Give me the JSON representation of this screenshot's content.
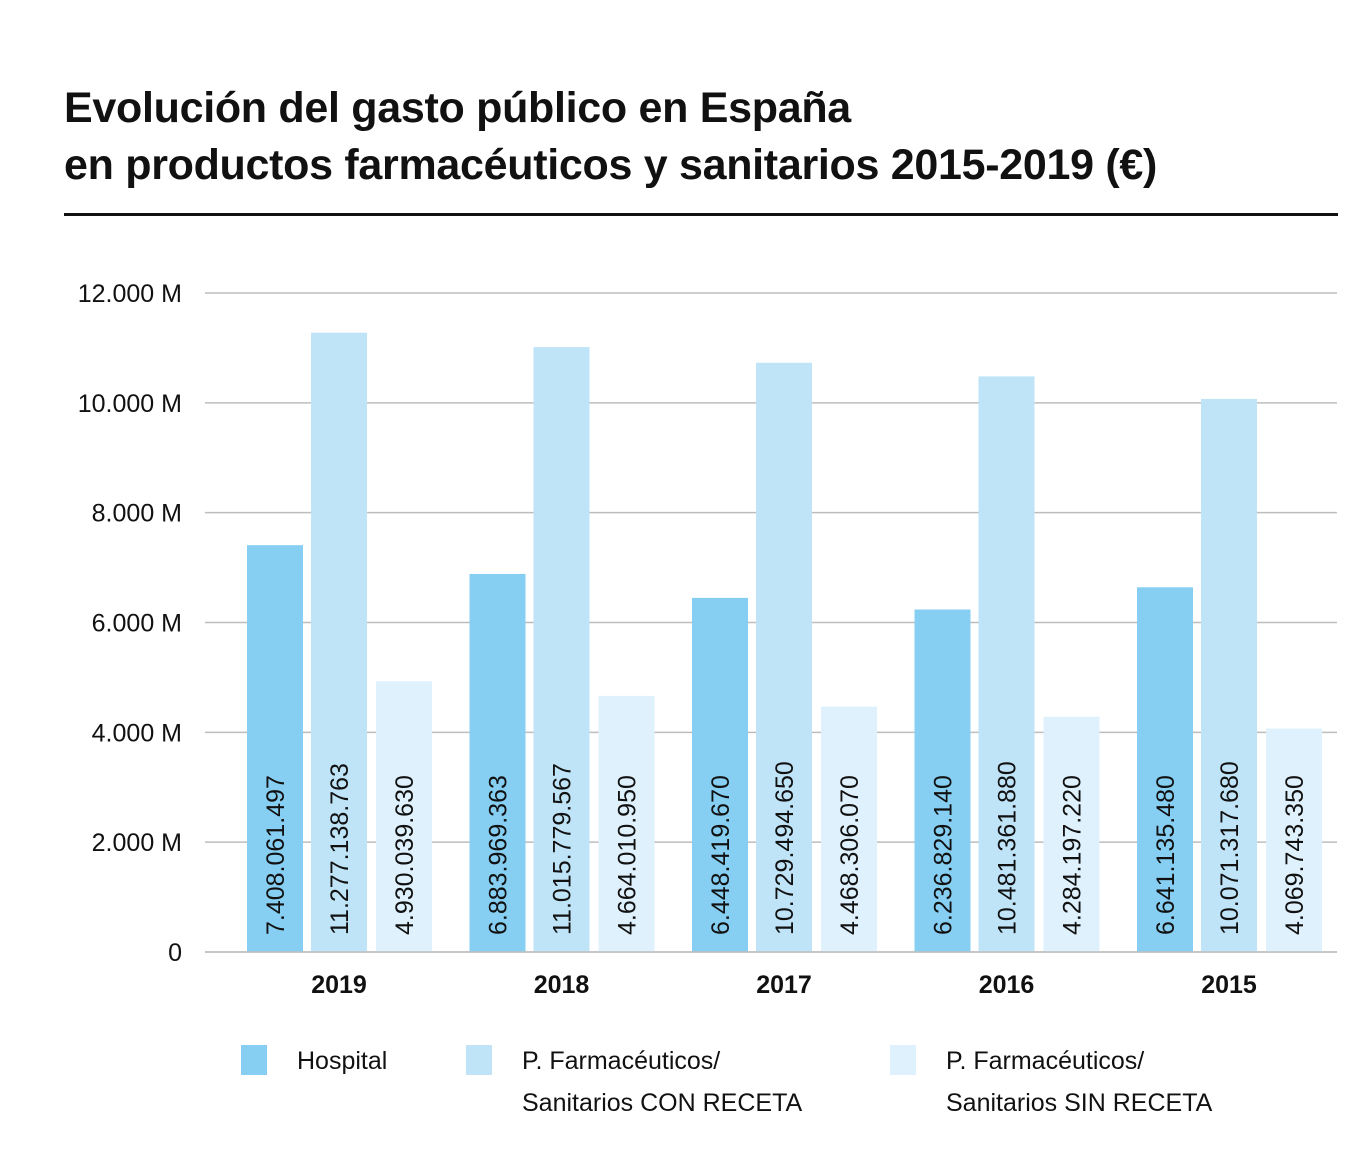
{
  "title_line1": "Evolución del gasto público en España",
  "title_line2": "en productos farmacéuticos y sanitarios 2015-2019 (€)",
  "colors": {
    "hospital": "#86cff3",
    "con_receta": "#bfe4f8",
    "sin_receta": "#dff1fc",
    "grid": "#bdbdbd",
    "text": "#111111"
  },
  "chart_data": {
    "type": "bar",
    "title": "Evolución del gasto público en España en productos farmacéuticos y sanitarios 2015-2019 (€)",
    "xlabel": "",
    "ylabel": "",
    "categories": [
      "2019",
      "2018",
      "2017",
      "2016",
      "2015"
    ],
    "series": [
      {
        "name": "Hospital",
        "values": [
          7408061497,
          6883969363,
          6448419670,
          6236829140,
          6641135480
        ],
        "labels": [
          "7.408.061.497",
          "6.883.969.363",
          "6.448.419.670",
          "6.236.829.140",
          "6.641.135.480"
        ]
      },
      {
        "name": "P. Farmacéuticos/ Sanitarios CON RECETA",
        "values": [
          11277138763,
          11015779567,
          10729494650,
          10481361880,
          10071317680
        ],
        "labels": [
          "11.277.138.763",
          "11.015.779.567",
          "10.729.494.650",
          "10.481.361.880",
          "10.071.317.680"
        ]
      },
      {
        "name": "P. Farmacéuticos/ Sanitarios SIN RECETA",
        "values": [
          4930039630,
          4664010950,
          4468306070,
          4284197220,
          4069743350
        ],
        "labels": [
          "4.930.039.630",
          "4.664.010.950",
          "4.468.306.070",
          "4.284.197.220",
          "4.069.743.350"
        ]
      }
    ],
    "ylim": [
      0,
      12000000000
    ],
    "yticks": [
      0,
      2000000000,
      4000000000,
      6000000000,
      8000000000,
      10000000000,
      12000000000
    ],
    "ytick_labels": [
      "0",
      "2.000 M",
      "4.000 M",
      "6.000 M",
      "8.000 M",
      "10.000 M",
      "12.000 M"
    ],
    "grid": true,
    "legend_position": "bottom"
  },
  "legend": [
    {
      "line1": "Hospital",
      "line2": ""
    },
    {
      "line1": "P. Farmacéuticos/",
      "line2": "Sanitarios CON RECETA"
    },
    {
      "line1": "P. Farmacéuticos/",
      "line2": "Sanitarios SIN RECETA"
    }
  ]
}
